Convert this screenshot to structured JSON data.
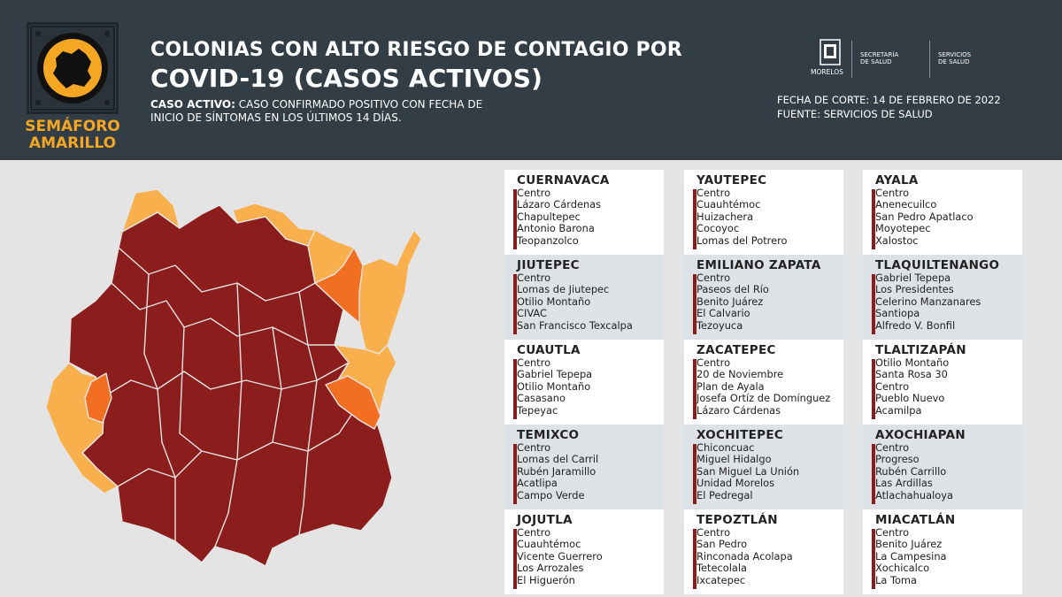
{
  "header": {
    "title_line1": "COLONIAS CON ALTO RIESGO DE CONTAGIO POR",
    "title_line2": "COVID-19 (CASOS ACTIVOS)",
    "def_label": "CASO ACTIVO:",
    "def_text": " CASO CONFIRMADO POSITIVO CON FECHA DE",
    "def_text2": "INICIO DE SÍNTOMAS EN LOS ÚLTIMOS 14 DÍAS.",
    "semaforo_line1": "SEMÁFORO",
    "semaforo_line2": "AMARILLO",
    "fecha": "FECHA DE CORTE: 14 DE FEBRERO DE 2022",
    "fuente": "FUENTE: SERVICIOS DE SALUD",
    "logo1": "MORELOS",
    "logo2_l1": "SECRETARÍA",
    "logo2_l2": "DE SALUD",
    "logo3_l1": "SERVICIOS",
    "logo3_l2": "DE SALUD"
  },
  "colors": {
    "dark_red": "#8b1d1d",
    "orange": "#f26f21",
    "light_orange": "#f9b04c",
    "header_bg": "#323d45",
    "accent": "#f5a623"
  },
  "columns": [
    [
      {
        "name": "CUERNAVACA",
        "items": [
          "Centro",
          "Lázaro Cárdenas",
          "Chapultepec",
          "Antonio Barona",
          "Teopanzolco"
        ]
      },
      {
        "name": "JIUTEPEC",
        "items": [
          "Centro",
          "Lomas de Jiutepec",
          "Otilio Montaño",
          "CIVAC",
          "San Francisco Texcalpa"
        ]
      },
      {
        "name": "CUAUTLA",
        "items": [
          "Centro",
          "Gabriel Tepepa",
          "Otilio Montaño",
          "Casasano",
          "Tepeyac"
        ]
      },
      {
        "name": "TEMIXCO",
        "items": [
          "Centro",
          "Lomas del Carril",
          "Rubén Jaramillo",
          "Acatlipa",
          "Campo Verde"
        ]
      },
      {
        "name": "JOJUTLA",
        "items": [
          "Centro",
          "Cuauhtémoc",
          "Vicente Guerrero",
          "Los Arrozales",
          "El Higuerón"
        ]
      }
    ],
    [
      {
        "name": "YAUTEPEC",
        "items": [
          "Centro",
          "Cuauhtémoc",
          "Huizachera",
          "Cocoyoc",
          "Lomas del Potrero"
        ]
      },
      {
        "name": "EMILIANO ZAPATA",
        "items": [
          "Centro",
          "Paseos del Río",
          "Benito Juárez",
          "El Calvario",
          "Tezoyuca"
        ]
      },
      {
        "name": "ZACATEPEC",
        "items": [
          "Centro",
          "20 de Noviembre",
          "Plan de Ayala",
          "Josefa Ortíz de Domínguez",
          "Lázaro Cárdenas"
        ]
      },
      {
        "name": "XOCHITEPEC",
        "items": [
          "Chiconcuac",
          "Miguel Hidalgo",
          "San Miguel La Unión",
          "Unidad Morelos",
          "El Pedregal"
        ]
      },
      {
        "name": "TEPOZTLÁN",
        "items": [
          "Centro",
          "San Pedro",
          "Rinconada Acolapa",
          "Tetecolala",
          "Ixcatepec"
        ]
      }
    ],
    [
      {
        "name": "AYALA",
        "items": [
          "Centro",
          "Anenecuilco",
          "San Pedro Apatlaco",
          "Moyotepec",
          "Xalostoc"
        ]
      },
      {
        "name": "TLAQUILTENANGO",
        "items": [
          "Gabriel Tepepa",
          "Los Presidentes",
          "Celerino Manzanares",
          "Santiopa",
          "Alfredo V. Bonfil"
        ]
      },
      {
        "name": "TLALTIZAPÁN",
        "items": [
          "Otilio Montaño",
          "Santa Rosa 30",
          "Centro",
          "Pueblo Nuevo",
          "Acamilpa"
        ]
      },
      {
        "name": "AXOCHIAPAN",
        "items": [
          "Centro",
          "Progreso",
          "Rubén Carrillo",
          "Las Ardillas",
          "Atlachahualoya"
        ]
      },
      {
        "name": "MIACATLÁN",
        "items": [
          "Centro",
          "Benito Juárez",
          "La Campesina",
          "Xochicalco",
          "La Toma"
        ]
      }
    ]
  ]
}
